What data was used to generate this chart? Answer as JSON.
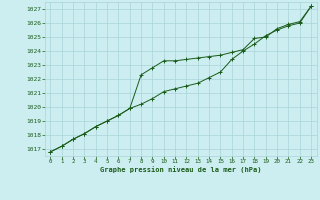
{
  "title": "Graphe pression niveau de la mer (hPa)",
  "bg_color": "#cceef0",
  "grid_color": "#aad4d8",
  "line_color": "#1a5c1a",
  "xlim": [
    -0.5,
    23.5
  ],
  "ylim": [
    1016.5,
    1027.5
  ],
  "yticks": [
    1017,
    1018,
    1019,
    1020,
    1021,
    1022,
    1023,
    1024,
    1025,
    1026,
    1027
  ],
  "xticks": [
    0,
    1,
    2,
    3,
    4,
    5,
    6,
    7,
    8,
    9,
    10,
    11,
    12,
    13,
    14,
    15,
    16,
    17,
    18,
    19,
    20,
    21,
    22,
    23
  ],
  "series1_x": [
    0,
    1,
    2,
    3,
    4,
    5,
    6,
    7,
    8,
    9,
    10,
    11,
    12,
    13,
    14,
    15,
    16,
    17,
    18,
    19,
    20,
    21,
    22,
    23
  ],
  "series1_y": [
    1016.8,
    1017.2,
    1017.7,
    1018.1,
    1018.6,
    1019.0,
    1019.4,
    1019.9,
    1022.3,
    1022.8,
    1023.3,
    1023.3,
    1023.4,
    1023.5,
    1023.6,
    1023.7,
    1023.9,
    1024.1,
    1024.9,
    1025.0,
    1025.6,
    1025.9,
    1026.1,
    1027.2
  ],
  "series2_x": [
    0,
    1,
    2,
    3,
    4,
    5,
    6,
    7,
    8,
    9,
    10,
    11,
    12,
    13,
    14,
    15,
    16,
    17,
    18,
    19,
    20,
    21,
    22,
    23
  ],
  "series2_y": [
    1016.8,
    1017.2,
    1017.7,
    1018.1,
    1018.6,
    1019.0,
    1019.4,
    1019.9,
    1020.2,
    1020.6,
    1021.1,
    1021.3,
    1021.5,
    1021.7,
    1022.1,
    1022.5,
    1023.4,
    1024.0,
    1024.5,
    1025.1,
    1025.5,
    1025.8,
    1026.0,
    1027.2
  ]
}
